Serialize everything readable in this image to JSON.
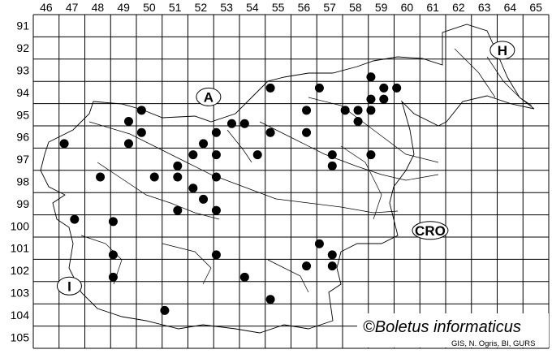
{
  "map": {
    "columns": [
      46,
      47,
      48,
      49,
      50,
      51,
      52,
      53,
      54,
      55,
      56,
      57,
      58,
      59,
      60,
      61,
      62,
      63,
      64,
      65
    ],
    "rows": [
      91,
      92,
      93,
      94,
      95,
      96,
      97,
      98,
      99,
      100,
      101,
      102,
      103,
      104,
      105
    ],
    "country_labels": [
      {
        "text": "A",
        "col": 52.8,
        "row": 94.7
      },
      {
        "text": "H",
        "col": 64.2,
        "row": 92.6
      },
      {
        "text": "CRO",
        "col": 61.4,
        "row": 100.7
      },
      {
        "text": "I",
        "col": 47.4,
        "row": 103.2
      }
    ],
    "records": [
      [
        47.2,
        96.8
      ],
      [
        48.6,
        98.3
      ],
      [
        47.6,
        100.2
      ],
      [
        49.1,
        100.3
      ],
      [
        49.1,
        101.8
      ],
      [
        49.1,
        102.8
      ],
      [
        49.7,
        95.8
      ],
      [
        50.2,
        95.3
      ],
      [
        50.2,
        96.3
      ],
      [
        49.7,
        96.8
      ],
      [
        50.7,
        98.3
      ],
      [
        51.6,
        97.8
      ],
      [
        51.6,
        98.3
      ],
      [
        52.2,
        97.3
      ],
      [
        52.2,
        98.8
      ],
      [
        52.6,
        96.8
      ],
      [
        52.6,
        99.3
      ],
      [
        51.6,
        99.8
      ],
      [
        53.1,
        96.3
      ],
      [
        53.1,
        97.3
      ],
      [
        53.1,
        98.3
      ],
      [
        53.1,
        99.8
      ],
      [
        53.7,
        95.9
      ],
      [
        54.2,
        95.9
      ],
      [
        54.7,
        97.3
      ],
      [
        55.2,
        94.3
      ],
      [
        55.2,
        96.3
      ],
      [
        53.1,
        101.8
      ],
      [
        54.2,
        102.8
      ],
      [
        55.2,
        103.8
      ],
      [
        51.1,
        104.3
      ],
      [
        57.1,
        94.3
      ],
      [
        56.6,
        95.3
      ],
      [
        56.6,
        96.3
      ],
      [
        57.6,
        97.3
      ],
      [
        57.6,
        97.8
      ],
      [
        58.1,
        95.3
      ],
      [
        58.6,
        95.3
      ],
      [
        58.6,
        95.8
      ],
      [
        59.1,
        93.8
      ],
      [
        59.6,
        94.3
      ],
      [
        60.1,
        94.3
      ],
      [
        59.1,
        94.8
      ],
      [
        59.6,
        94.8
      ],
      [
        59.1,
        95.3
      ],
      [
        59.1,
        97.3
      ],
      [
        57.1,
        101.3
      ],
      [
        57.6,
        101.8
      ],
      [
        57.6,
        102.3
      ],
      [
        56.6,
        102.3
      ]
    ],
    "copyright": "©Boletus informaticus",
    "credit": "GIS, N. Ogris, BI, GURS",
    "dot_color": "#000000",
    "line_color": "#000000"
  }
}
